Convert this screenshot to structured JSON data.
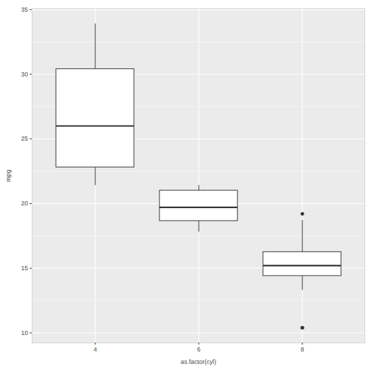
{
  "chart_data": {
    "type": "boxplot",
    "x_label": "as.factor(cyl)",
    "y_label": "mpg",
    "categories": [
      "4",
      "6",
      "8"
    ],
    "lower": [
      21.4,
      17.8,
      13.3
    ],
    "q1": [
      22.8,
      18.65,
      14.4
    ],
    "median": [
      26.0,
      19.7,
      15.2
    ],
    "q3": [
      30.4,
      21.0,
      16.25
    ],
    "upper": [
      33.9,
      21.4,
      18.7
    ],
    "outliers": [
      [],
      [],
      [
        10.4,
        10.4,
        19.2
      ]
    ],
    "color": "#ffffff",
    "ylim": [
      9.225,
      35.075
    ],
    "yticks": [
      10,
      15,
      20,
      25,
      30,
      35
    ],
    "grid": true
  }
}
